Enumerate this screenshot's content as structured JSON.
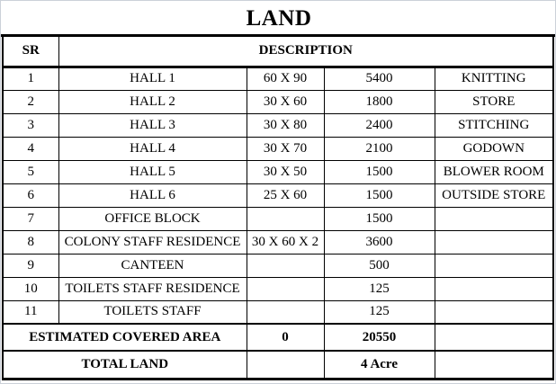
{
  "title": "LAND",
  "header": {
    "sr": "SR",
    "description": "DESCRIPTION"
  },
  "rows": [
    {
      "sr": "1",
      "name": "HALL 1",
      "size": "60 X 90",
      "area": "5400",
      "purpose": "KNITTING"
    },
    {
      "sr": "2",
      "name": "HALL 2",
      "size": "30 X 60",
      "area": "1800",
      "purpose": "STORE"
    },
    {
      "sr": "3",
      "name": "HALL 3",
      "size": "30 X 80",
      "area": "2400",
      "purpose": "STITCHING"
    },
    {
      "sr": "4",
      "name": "HALL 4",
      "size": "30 X 70",
      "area": "2100",
      "purpose": "GODOWN"
    },
    {
      "sr": "5",
      "name": "HALL 5",
      "size": "30 X 50",
      "area": "1500",
      "purpose": "BLOWER ROOM"
    },
    {
      "sr": "6",
      "name": "HALL 6",
      "size": "25 X 60",
      "area": "1500",
      "purpose": "OUTSIDE STORE"
    },
    {
      "sr": "7",
      "name": "OFFICE BLOCK",
      "size": "",
      "area": "1500",
      "purpose": ""
    },
    {
      "sr": "8",
      "name": "COLONY STAFF RESIDENCE",
      "size": "30 X 60 X 2",
      "area": "3600",
      "purpose": ""
    },
    {
      "sr": "9",
      "name": "CANTEEN",
      "size": "",
      "area": "500",
      "purpose": ""
    },
    {
      "sr": "10",
      "name": "TOILETS STAFF RESIDENCE",
      "size": "",
      "area": "125",
      "purpose": ""
    },
    {
      "sr": "11",
      "name": "TOILETS STAFF",
      "size": "",
      "area": "125",
      "purpose": ""
    }
  ],
  "summary": {
    "covered": {
      "label": "ESTIMATED COVERED AREA",
      "size": "0",
      "area": "20550",
      "purpose": ""
    },
    "total": {
      "label": "TOTAL LAND",
      "size": "",
      "area": "4 Acre",
      "purpose": ""
    }
  },
  "colors": {
    "border": "#000000",
    "text": "#000000",
    "background": "#ffffff",
    "page_edge": "#ccd1d9"
  }
}
